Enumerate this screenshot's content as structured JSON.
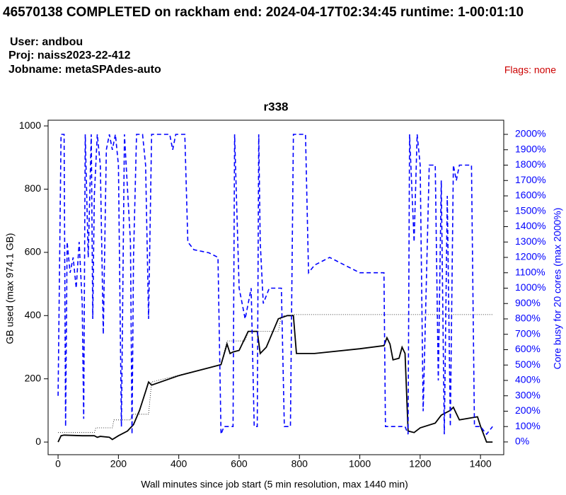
{
  "chart_data": {
    "type": "line",
    "title": "46570138 COMPLETED on rackham  end: 2024-04-17T02:34:45  runtime: 1-00:01:10",
    "user": "User: andbou",
    "project": "Proj: naiss2023-22-412",
    "jobname": "Jobname: metaSPAdes-auto",
    "flags": "Flags: none",
    "subtitle": "r338",
    "x_label": "Wall minutes since job start (5 min resolution, max 1440 min)",
    "y_label": "GB used (max 974.1 GB)",
    "y2_label": "Core busy for 20 cores (max 2000%)",
    "xlim": [
      -33,
      1477
    ],
    "xticks": [
      0,
      200,
      400,
      600,
      800,
      1000,
      1200,
      1400
    ],
    "ylim": [
      -40,
      1018
    ],
    "yticks": [
      0,
      200,
      400,
      600,
      800,
      1000
    ],
    "y2lim": [
      -83,
      2092
    ],
    "y2ticks": [
      {
        "value": 0,
        "label": "0%"
      },
      {
        "value": 100,
        "label": "100%"
      },
      {
        "value": 200,
        "label": "200%"
      },
      {
        "value": 300,
        "label": "300%"
      },
      {
        "value": 400,
        "label": "400%"
      },
      {
        "value": 500,
        "label": "500%"
      },
      {
        "value": 600,
        "label": "600%"
      },
      {
        "value": 700,
        "label": "700%"
      },
      {
        "value": 800,
        "label": "800%"
      },
      {
        "value": 900,
        "label": "900%"
      },
      {
        "value": 1000,
        "label": "1000%"
      },
      {
        "value": 1100,
        "label": "1100%"
      },
      {
        "value": 1200,
        "label": "1200%"
      },
      {
        "value": 1300,
        "label": "1300%"
      },
      {
        "value": 1400,
        "label": "1400%"
      },
      {
        "value": 1500,
        "label": "1500%"
      },
      {
        "value": 1600,
        "label": "1600%"
      },
      {
        "value": 1700,
        "label": "1700%"
      },
      {
        "value": 1800,
        "label": "1800%"
      },
      {
        "value": 1900,
        "label": "1900%"
      },
      {
        "value": 2000,
        "label": "2000%"
      }
    ],
    "series": [
      {
        "color": "#000000",
        "style": "dotted",
        "x": [
          0,
          120,
          125,
          180,
          185,
          240,
          245,
          300,
          310,
          540,
          560,
          620,
          630,
          730,
          740,
          770,
          780,
          1440
        ],
        "values": [
          30,
          30,
          45,
          45,
          70,
          70,
          88,
          88,
          190,
          245,
          320,
          320,
          350,
          350,
          400,
          400,
          403,
          403
        ]
      },
      {
        "color": "#000000",
        "style": "solid",
        "x": [
          0,
          10,
          20,
          80,
          120,
          130,
          140,
          170,
          180,
          200,
          230,
          240,
          250,
          270,
          290,
          300,
          310,
          400,
          500,
          540,
          560,
          570,
          580,
          600,
          620,
          630,
          660,
          670,
          690,
          730,
          760,
          780,
          790,
          850,
          1000,
          1080,
          1090,
          1100,
          1110,
          1130,
          1140,
          1150,
          1160,
          1180,
          1200,
          1250,
          1270,
          1300,
          1310,
          1320,
          1330,
          1390,
          1400,
          1420,
          1440
        ],
        "values": [
          0,
          20,
          22,
          20,
          20,
          15,
          18,
          15,
          8,
          20,
          35,
          45,
          55,
          100,
          160,
          190,
          180,
          210,
          235,
          245,
          310,
          280,
          285,
          290,
          330,
          350,
          350,
          280,
          300,
          390,
          400,
          400,
          280,
          280,
          295,
          305,
          330,
          310,
          260,
          265,
          300,
          280,
          35,
          30,
          45,
          60,
          85,
          100,
          110,
          90,
          70,
          80,
          50,
          0,
          0
        ]
      },
      {
        "color": "#0000ff",
        "style": "dashed",
        "axis": "y2",
        "x": [
          0,
          10,
          20,
          25,
          30,
          40,
          50,
          60,
          70,
          80,
          85,
          90,
          100,
          110,
          115,
          120,
          130,
          140,
          150,
          160,
          170,
          180,
          190,
          200,
          210,
          220,
          240,
          245,
          250,
          260,
          280,
          290,
          300,
          310,
          370,
          380,
          390,
          420,
          430,
          450,
          500,
          530,
          540,
          550,
          580,
          585,
          600,
          620,
          630,
          640,
          650,
          660,
          665,
          670,
          680,
          700,
          740,
          750,
          770,
          780,
          820,
          830,
          850,
          900,
          950,
          1000,
          1050,
          1080,
          1085,
          1150,
          1160,
          1165,
          1180,
          1190,
          1200,
          1210,
          1230,
          1250,
          1260,
          1270,
          1280,
          1290,
          1300,
          1310,
          1320,
          1330,
          1350,
          1370,
          1380,
          1400,
          1420,
          1440
        ],
        "values": [
          300,
          2000,
          2000,
          100,
          1300,
          1100,
          1200,
          1000,
          1300,
          900,
          150,
          2000,
          1200,
          2000,
          800,
          1600,
          2000,
          1800,
          700,
          1900,
          2000,
          1900,
          2000,
          1800,
          100,
          2000,
          1300,
          50,
          1200,
          2000,
          2000,
          1800,
          800,
          2000,
          2000,
          1900,
          2000,
          2000,
          1300,
          1250,
          1230,
          1200,
          50,
          100,
          100,
          2000,
          1000,
          800,
          900,
          1000,
          100,
          100,
          2000,
          1300,
          900,
          1000,
          1000,
          100,
          100,
          2000,
          2000,
          1100,
          1150,
          1200,
          1150,
          1100,
          1100,
          1100,
          100,
          100,
          50,
          2000,
          1300,
          2000,
          1800,
          200,
          1800,
          1800,
          400,
          1700,
          50,
          1600,
          100,
          1800,
          1700,
          1800,
          1800,
          1800,
          100,
          100,
          50,
          100
        ]
      }
    ]
  }
}
